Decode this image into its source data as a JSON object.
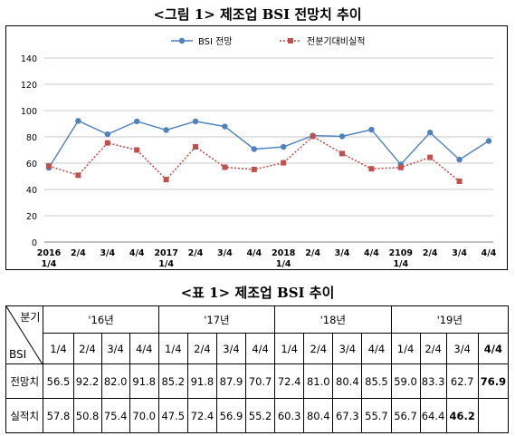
{
  "captions": {
    "chart": "<그림 1> 제조업 BSI 전망치 추이",
    "table": "<표 1> 제조업 BSI 추이"
  },
  "chart_data": {
    "type": "line",
    "categories": [
      "2016\n1/4",
      "2/4",
      "3/4",
      "4/4",
      "2017\n1/4",
      "2/4",
      "3/4",
      "4/4",
      "2018\n1/4",
      "2/4",
      "3/4",
      "4/4",
      "2109\n1/4",
      "2/4",
      "3/4",
      "4/4"
    ],
    "ylim": [
      0,
      140
    ],
    "yticks": [
      0,
      20,
      40,
      60,
      80,
      100,
      120,
      140
    ],
    "grid": true,
    "legend_position": "top-center",
    "series": [
      {
        "name": "BSI 전망",
        "color": "#4f81bd",
        "marker": "circle",
        "line": "solid",
        "values": [
          56.5,
          92.2,
          82.0,
          91.8,
          85.2,
          91.8,
          87.9,
          70.7,
          72.4,
          81.0,
          80.4,
          85.5,
          59.0,
          83.3,
          62.7,
          76.9
        ]
      },
      {
        "name": "전분기대비실적",
        "color": "#c0504d",
        "marker": "square",
        "line": "dotted",
        "values": [
          57.8,
          50.8,
          75.4,
          70.0,
          47.5,
          72.4,
          56.9,
          55.2,
          60.3,
          80.4,
          67.3,
          55.7,
          56.7,
          64.4,
          46.2,
          null
        ]
      }
    ]
  },
  "table": {
    "corner_top": "분기",
    "corner_bottom": "BSI",
    "years": [
      "'16년",
      "'17년",
      "'18년",
      "'19년"
    ],
    "quarters": [
      "1/4",
      "2/4",
      "3/4",
      "4/4",
      "1/4",
      "2/4",
      "3/4",
      "4/4",
      "1/4",
      "2/4",
      "3/4",
      "4/4",
      "1/4",
      "2/4",
      "3/4",
      "4/4"
    ],
    "rows": [
      {
        "label": "전망치",
        "values": [
          "56.5",
          "92.2",
          "82.0",
          "91.8",
          "85.2",
          "91.8",
          "87.9",
          "70.7",
          "72.4",
          "81.0",
          "80.4",
          "85.5",
          "59.0",
          "83.3",
          "62.7",
          "76.9"
        ]
      },
      {
        "label": "실적치",
        "values": [
          "57.8",
          "50.8",
          "75.4",
          "70.0",
          "47.5",
          "72.4",
          "56.9",
          "55.2",
          "60.3",
          "80.4",
          "67.3",
          "55.7",
          "56.7",
          "64.4",
          "46.2",
          ""
        ]
      }
    ]
  }
}
